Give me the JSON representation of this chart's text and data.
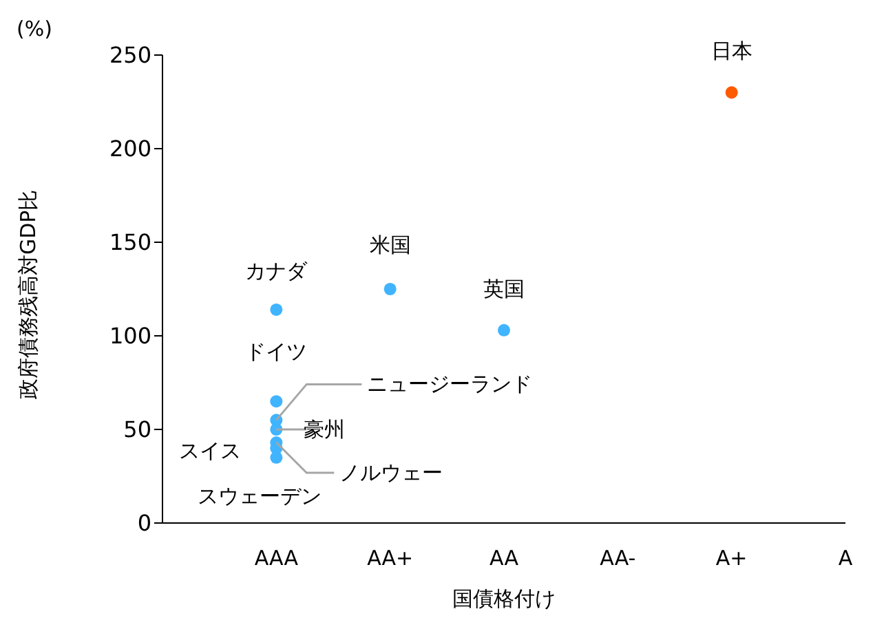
{
  "chart_data": {
    "type": "scatter",
    "xlabel": "国債格付け",
    "ylabel": "政府債務残高対GDP比",
    "categories": [
      "AAA",
      "AA+",
      "AA",
      "AA-",
      "A+",
      "A"
    ],
    "series": [
      {
        "color": "#41b4ff",
        "x": [
          "AAA",
          "AA+",
          "AA",
          "AAA",
          "AAA",
          "AAA",
          "AAA",
          "AAA"
        ],
        "values": [
          114,
          125,
          103,
          65,
          55,
          50,
          40,
          43
        ]
      },
      {
        "color": "#ff5a00",
        "x": [
          "A+"
        ],
        "values": [
          230
        ]
      },
      {
        "color": "#41b4ff",
        "x": [
          "AAA"
        ],
        "values": [
          35
        ]
      }
    ],
    "ylim": [
      0,
      250
    ],
    "yticks": [
      0,
      50,
      100,
      150,
      200,
      250
    ],
    "grid": false,
    "legend": false,
    "marker": "circle",
    "annotations": [
      "(%)",
      {
        "text": "カナダ",
        "x": "AAA",
        "y": 114
      },
      {
        "text": "米国",
        "x": "AA+",
        "y": 125
      },
      {
        "text": "英国",
        "x": "AA",
        "y": 103
      },
      {
        "text": "日本",
        "x": "A+",
        "y": 230
      },
      {
        "text": "ドイツ",
        "x": "AAA",
        "y": 65
      },
      {
        "text": "ニュージーランド",
        "x": "AAA",
        "y": 55
      },
      {
        "text": "豪州",
        "x": "AAA",
        "y": 50
      },
      {
        "text": "スイス",
        "x": "AAA",
        "y": 40
      },
      {
        "text": "ノルウェー",
        "x": "AAA",
        "y": 43
      },
      {
        "text": "スウェーデン",
        "x": "AAA",
        "y": 35
      }
    ]
  }
}
